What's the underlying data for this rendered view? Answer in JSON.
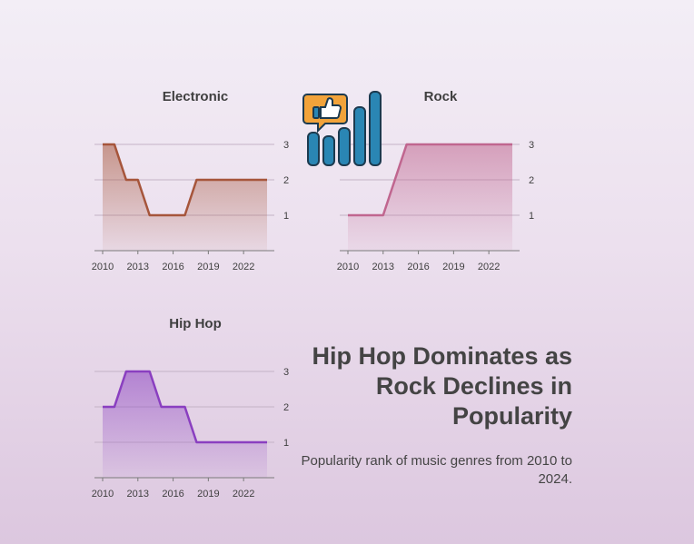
{
  "headline": "Hip Hop Dominates as Rock Declines in Popularity",
  "subheadline": "Popularity rank of music genres from 2010 to 2024.",
  "logo": {
    "icon": "thumbs-up-bar-chart-icon",
    "colors": [
      "#f2a33a",
      "#2a86b4",
      "#1c3a4f"
    ]
  },
  "chart_data": [
    {
      "type": "area",
      "title": "Electronic",
      "x": [
        2010,
        2011,
        2012,
        2013,
        2014,
        2015,
        2016,
        2017,
        2018,
        2019,
        2020,
        2021,
        2022,
        2023,
        2024
      ],
      "values": [
        3,
        3,
        2,
        2,
        1,
        1,
        1,
        1,
        2,
        2,
        2,
        2,
        2,
        2,
        2
      ],
      "xticks": [
        2010,
        2013,
        2016,
        2019,
        2022
      ],
      "yticks": [
        1,
        2,
        3
      ],
      "ylim": [
        0,
        3
      ],
      "color": "#a6553b",
      "grid": true
    },
    {
      "type": "area",
      "title": "Rock",
      "x": [
        2010,
        2011,
        2012,
        2013,
        2014,
        2015,
        2016,
        2017,
        2018,
        2019,
        2020,
        2021,
        2022,
        2023,
        2024
      ],
      "values": [
        1,
        1,
        1,
        1,
        2,
        3,
        3,
        3,
        3,
        3,
        3,
        3,
        3,
        3,
        3
      ],
      "xticks": [
        2010,
        2013,
        2016,
        2019,
        2022
      ],
      "yticks": [
        1,
        2,
        3
      ],
      "ylim": [
        0,
        3
      ],
      "color": "#c0668f",
      "grid": true
    },
    {
      "type": "area",
      "title": "Hip Hop",
      "x": [
        2010,
        2011,
        2012,
        2013,
        2014,
        2015,
        2016,
        2017,
        2018,
        2019,
        2020,
        2021,
        2022,
        2023,
        2024
      ],
      "values": [
        2,
        2,
        3,
        3,
        3,
        2,
        2,
        2,
        1,
        1,
        1,
        1,
        1,
        1,
        1
      ],
      "xticks": [
        2010,
        2013,
        2016,
        2019,
        2022
      ],
      "yticks": [
        1,
        2,
        3
      ],
      "ylim": [
        0,
        3
      ],
      "color": "#8a3fc0",
      "grid": true
    }
  ]
}
